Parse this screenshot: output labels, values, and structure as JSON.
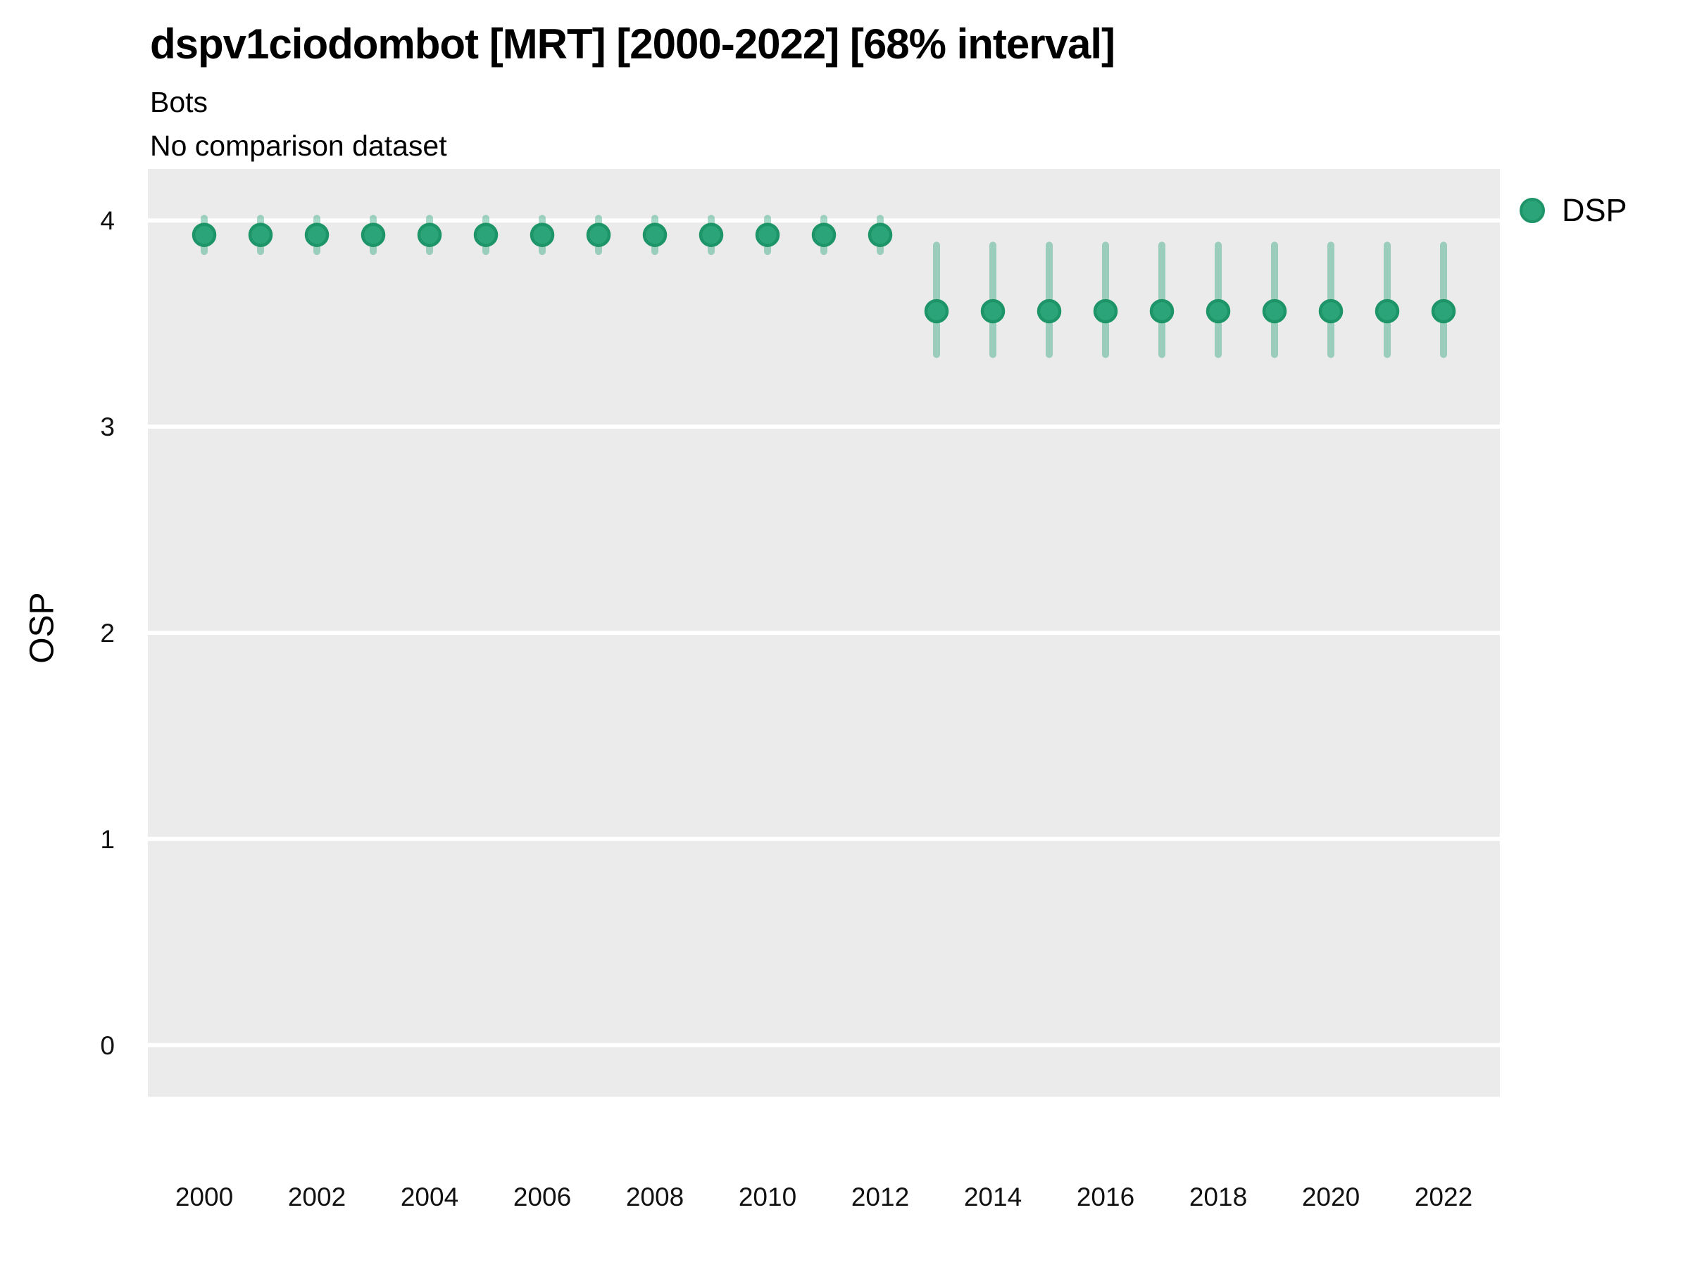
{
  "header": {
    "title": "dspv1ciodombot [MRT] [2000-2022] [68% interval]",
    "subtitle": "Bots",
    "comparison_note": "No comparison dataset"
  },
  "legend": {
    "position": "right-top",
    "items": [
      {
        "label": "DSP",
        "marker": "circle-icon",
        "marker_color": "#2CA47A",
        "marker_ring_color": "#1E9469"
      }
    ]
  },
  "colors": {
    "page_bg": "#FFFFFF",
    "panel_bg": "#EBEBEB",
    "gridline": "#FFFFFF",
    "point_fill": "#2CA47A",
    "point_stroke": "#1E9469",
    "interval_bar": "rgba(44,164,122,0.42)",
    "text": "#000000",
    "tick_text": "#111111"
  },
  "chart_data": {
    "type": "scatter",
    "subtype": "pointinterval",
    "title": "dspv1ciodombot [MRT] [2000-2022] [68% interval]",
    "subtitle": "Bots",
    "note": "No comparison dataset",
    "interval_level": "68%",
    "xlabel": "",
    "ylabel": "OSP",
    "xlim": [
      1999,
      2023
    ],
    "ylim": [
      -0.25,
      4.25
    ],
    "x_ticks": [
      2000,
      2002,
      2004,
      2006,
      2008,
      2010,
      2012,
      2014,
      2016,
      2018,
      2020,
      2022
    ],
    "y_ticks": [
      0,
      1,
      2,
      3,
      4
    ],
    "grid": "major-only",
    "legend_position": "right",
    "series": [
      {
        "name": "DSP",
        "x": [
          2000,
          2001,
          2002,
          2003,
          2004,
          2005,
          2006,
          2007,
          2008,
          2009,
          2010,
          2011,
          2012,
          2013,
          2014,
          2015,
          2016,
          2017,
          2018,
          2019,
          2020,
          2021,
          2022
        ],
        "y": [
          3.93,
          3.93,
          3.93,
          3.93,
          3.93,
          3.93,
          3.93,
          3.93,
          3.93,
          3.93,
          3.93,
          3.93,
          3.93,
          3.56,
          3.56,
          3.56,
          3.56,
          3.56,
          3.56,
          3.56,
          3.56,
          3.56,
          3.56
        ],
        "lower": [
          3.85,
          3.85,
          3.85,
          3.85,
          3.85,
          3.85,
          3.85,
          3.85,
          3.85,
          3.85,
          3.85,
          3.85,
          3.85,
          3.35,
          3.35,
          3.35,
          3.35,
          3.35,
          3.35,
          3.35,
          3.35,
          3.35,
          3.35
        ],
        "upper": [
          4.01,
          4.01,
          4.01,
          4.01,
          4.01,
          4.01,
          4.01,
          4.01,
          4.01,
          4.01,
          4.01,
          4.01,
          4.01,
          3.88,
          3.88,
          3.88,
          3.88,
          3.88,
          3.88,
          3.88,
          3.88,
          3.88,
          3.88
        ]
      }
    ]
  }
}
